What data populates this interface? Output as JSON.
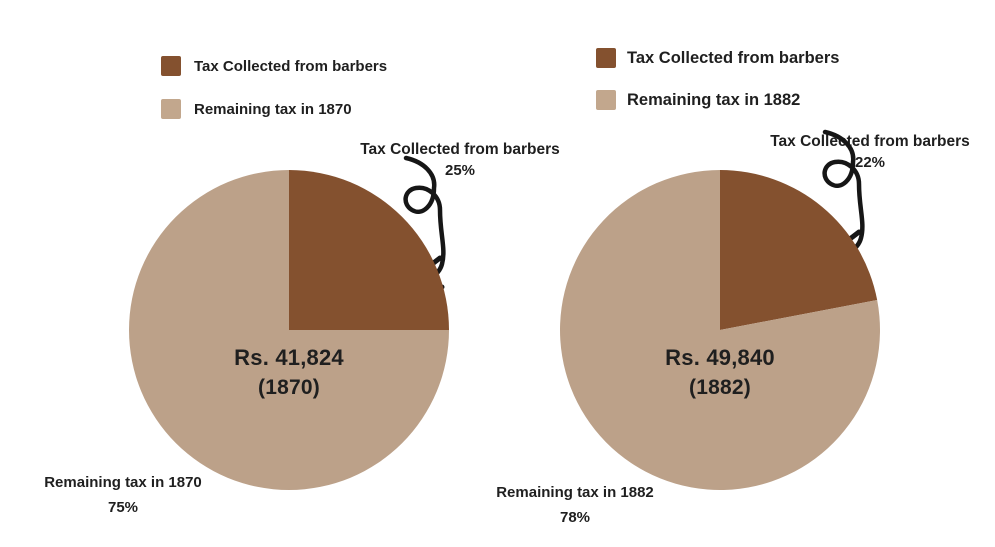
{
  "background": "#ffffff",
  "text_color": "#1f1f1f",
  "arrow_color": "#161616",
  "chart_data": [
    {
      "type": "pie",
      "year": "1870",
      "title": "Rs. 41,824",
      "subtitle": "(1870)",
      "categories": [
        "Tax Collected from barbers",
        "Remaining tax in 1870"
      ],
      "values": [
        25,
        75
      ],
      "unit": "%",
      "slice_colors": [
        "#84512F",
        "#BCA189"
      ],
      "legend": [
        {
          "label": "Tax Collected from barbers",
          "swatch": "#84512F"
        },
        {
          "label": "Remaining tax in 1870",
          "swatch": "#C2A78D"
        }
      ],
      "callout": {
        "label": "Tax Collected from barbers",
        "value": "25%"
      },
      "outer_label": {
        "label": "Remaining tax in 1870",
        "value": "75%"
      },
      "legend_position": "top-left",
      "start_angle_deg": 0,
      "direction": "clockwise"
    },
    {
      "type": "pie",
      "year": "1882",
      "title": "Rs. 49,840",
      "subtitle": "(1882)",
      "categories": [
        "Tax Collected from barbers",
        "Remaining tax in 1882"
      ],
      "values": [
        22,
        78
      ],
      "unit": "%",
      "slice_colors": [
        "#84512F",
        "#BCA189"
      ],
      "legend": [
        {
          "label": "Tax Collected from barbers",
          "swatch": "#84512F"
        },
        {
          "label": "Remaining tax in 1882",
          "swatch": "#C2A78D"
        }
      ],
      "callout": {
        "label": "Tax Collected from barbers",
        "value": "22%"
      },
      "outer_label": {
        "label": "Remaining tax in 1882",
        "value": "78%"
      },
      "legend_position": "top-left",
      "start_angle_deg": 0,
      "direction": "clockwise"
    }
  ]
}
